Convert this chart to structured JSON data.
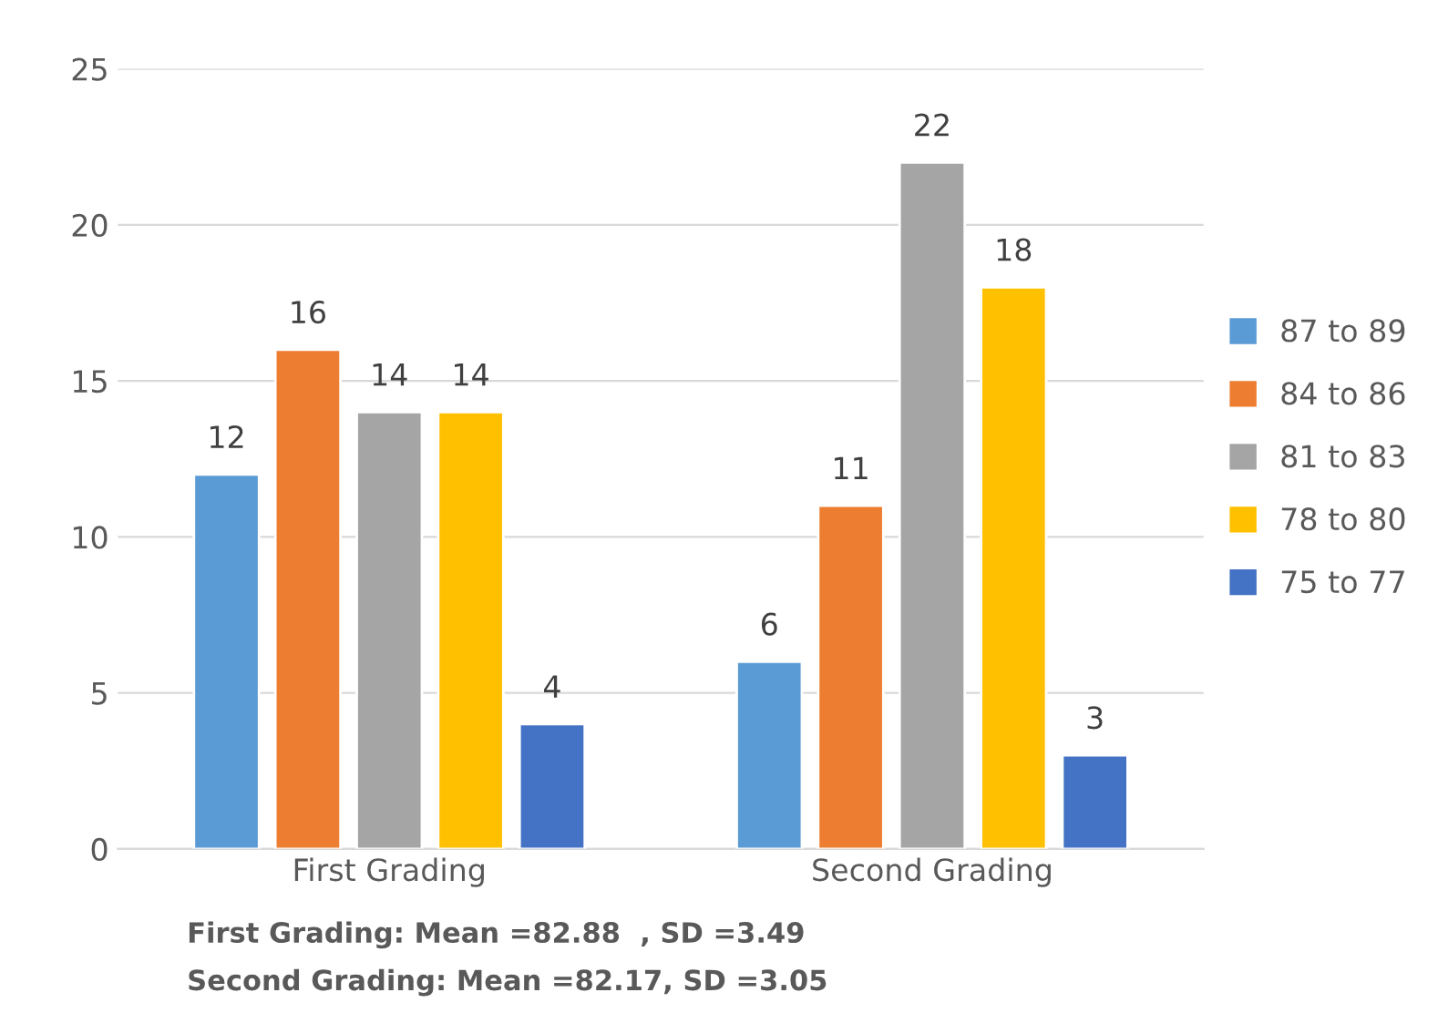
{
  "chart_data": {
    "type": "bar",
    "categories": [
      "First Grading",
      "Second Grading"
    ],
    "series": [
      {
        "name": "87 to 89",
        "color": "#5b9bd5",
        "values": [
          12,
          6
        ]
      },
      {
        "name": "84 to 86",
        "color": "#ed7d31",
        "values": [
          16,
          11
        ]
      },
      {
        "name": "81 to 83",
        "color": "#a5a5a5",
        "values": [
          14,
          22
        ]
      },
      {
        "name": "78 to 80",
        "color": "#ffc000",
        "values": [
          14,
          18
        ]
      },
      {
        "name": "75 to 77",
        "color": "#4472c4",
        "values": [
          4,
          3
        ]
      }
    ],
    "ylim": [
      0,
      25
    ],
    "yticks": [
      0,
      5,
      10,
      15,
      20,
      25
    ],
    "grid": "y",
    "legend": "right",
    "data_labels": true,
    "annotations": [
      "First Grading: Mean =82.88  , SD =3.49",
      "Second Grading: Mean =82.17, SD =3.05"
    ]
  }
}
